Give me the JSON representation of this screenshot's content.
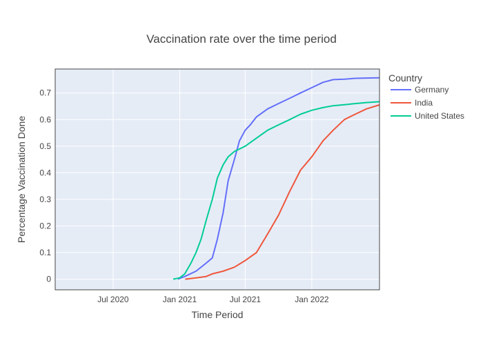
{
  "chart_data": {
    "type": "line",
    "title": "Vaccination rate over the time period",
    "xlabel": "Time Period",
    "ylabel": "Percentage Vaccination Done",
    "legend": {
      "title": "Country",
      "placement": "right"
    },
    "xlim": [
      "2020-01-23",
      "2022-07-07"
    ],
    "ylim": [
      -0.04,
      0.79
    ],
    "grid": true,
    "x_ticks": [
      {
        "date": "2020-07-01",
        "label": "Jul 2020"
      },
      {
        "date": "2021-01-01",
        "label": "Jan 2021"
      },
      {
        "date": "2021-07-01",
        "label": "Jul 2021"
      },
      {
        "date": "2022-01-01",
        "label": "Jan 2022"
      }
    ],
    "y_ticks": [
      0,
      0.1,
      0.2,
      0.3,
      0.4,
      0.5,
      0.6,
      0.7
    ],
    "y_tick_labels": [
      "0",
      "0.1",
      "0.2",
      "0.3",
      "0.4",
      "0.5",
      "0.6",
      "0.7"
    ],
    "series": [
      {
        "name": "Germany",
        "color": "#636efa",
        "points": [
          [
            "2020-12-27",
            0.0
          ],
          [
            "2021-01-15",
            0.01
          ],
          [
            "2021-02-15",
            0.03
          ],
          [
            "2021-03-15",
            0.06
          ],
          [
            "2021-04-01",
            0.08
          ],
          [
            "2021-04-15",
            0.15
          ],
          [
            "2021-05-01",
            0.25
          ],
          [
            "2021-05-15",
            0.37
          ],
          [
            "2021-06-01",
            0.45
          ],
          [
            "2021-06-15",
            0.52
          ],
          [
            "2021-07-01",
            0.56
          ],
          [
            "2021-07-15",
            0.58
          ],
          [
            "2021-08-01",
            0.61
          ],
          [
            "2021-09-01",
            0.64
          ],
          [
            "2021-10-01",
            0.66
          ],
          [
            "2021-11-01",
            0.68
          ],
          [
            "2021-12-01",
            0.7
          ],
          [
            "2022-01-01",
            0.72
          ],
          [
            "2022-02-01",
            0.74
          ],
          [
            "2022-03-01",
            0.75
          ],
          [
            "2022-04-01",
            0.752
          ],
          [
            "2022-05-01",
            0.755
          ],
          [
            "2022-06-01",
            0.756
          ],
          [
            "2022-07-07",
            0.757
          ]
        ]
      },
      {
        "name": "India",
        "color": "#ef553b",
        "points": [
          [
            "2021-01-16",
            0.0
          ],
          [
            "2021-02-15",
            0.005
          ],
          [
            "2021-03-15",
            0.01
          ],
          [
            "2021-04-01",
            0.02
          ],
          [
            "2021-05-01",
            0.03
          ],
          [
            "2021-06-01",
            0.045
          ],
          [
            "2021-07-01",
            0.07
          ],
          [
            "2021-08-01",
            0.1
          ],
          [
            "2021-09-01",
            0.17
          ],
          [
            "2021-10-01",
            0.24
          ],
          [
            "2021-11-01",
            0.33
          ],
          [
            "2021-12-01",
            0.41
          ],
          [
            "2022-01-01",
            0.46
          ],
          [
            "2022-02-01",
            0.52
          ],
          [
            "2022-03-01",
            0.56
          ],
          [
            "2022-04-01",
            0.6
          ],
          [
            "2022-05-01",
            0.62
          ],
          [
            "2022-06-01",
            0.64
          ],
          [
            "2022-07-07",
            0.655
          ]
        ]
      },
      {
        "name": "United States",
        "color": "#00cc96",
        "points": [
          [
            "2020-12-14",
            0.0
          ],
          [
            "2021-01-01",
            0.005
          ],
          [
            "2021-01-15",
            0.02
          ],
          [
            "2021-02-01",
            0.06
          ],
          [
            "2021-02-15",
            0.1
          ],
          [
            "2021-03-01",
            0.15
          ],
          [
            "2021-03-15",
            0.22
          ],
          [
            "2021-04-01",
            0.3
          ],
          [
            "2021-04-15",
            0.38
          ],
          [
            "2021-05-01",
            0.43
          ],
          [
            "2021-05-15",
            0.46
          ],
          [
            "2021-06-01",
            0.48
          ],
          [
            "2021-07-01",
            0.5
          ],
          [
            "2021-08-01",
            0.53
          ],
          [
            "2021-09-01",
            0.56
          ],
          [
            "2021-10-01",
            0.58
          ],
          [
            "2021-11-01",
            0.6
          ],
          [
            "2021-12-01",
            0.62
          ],
          [
            "2022-01-01",
            0.635
          ],
          [
            "2022-02-01",
            0.645
          ],
          [
            "2022-03-01",
            0.652
          ],
          [
            "2022-04-01",
            0.656
          ],
          [
            "2022-05-01",
            0.66
          ],
          [
            "2022-06-01",
            0.664
          ],
          [
            "2022-07-07",
            0.667
          ]
        ]
      }
    ]
  }
}
